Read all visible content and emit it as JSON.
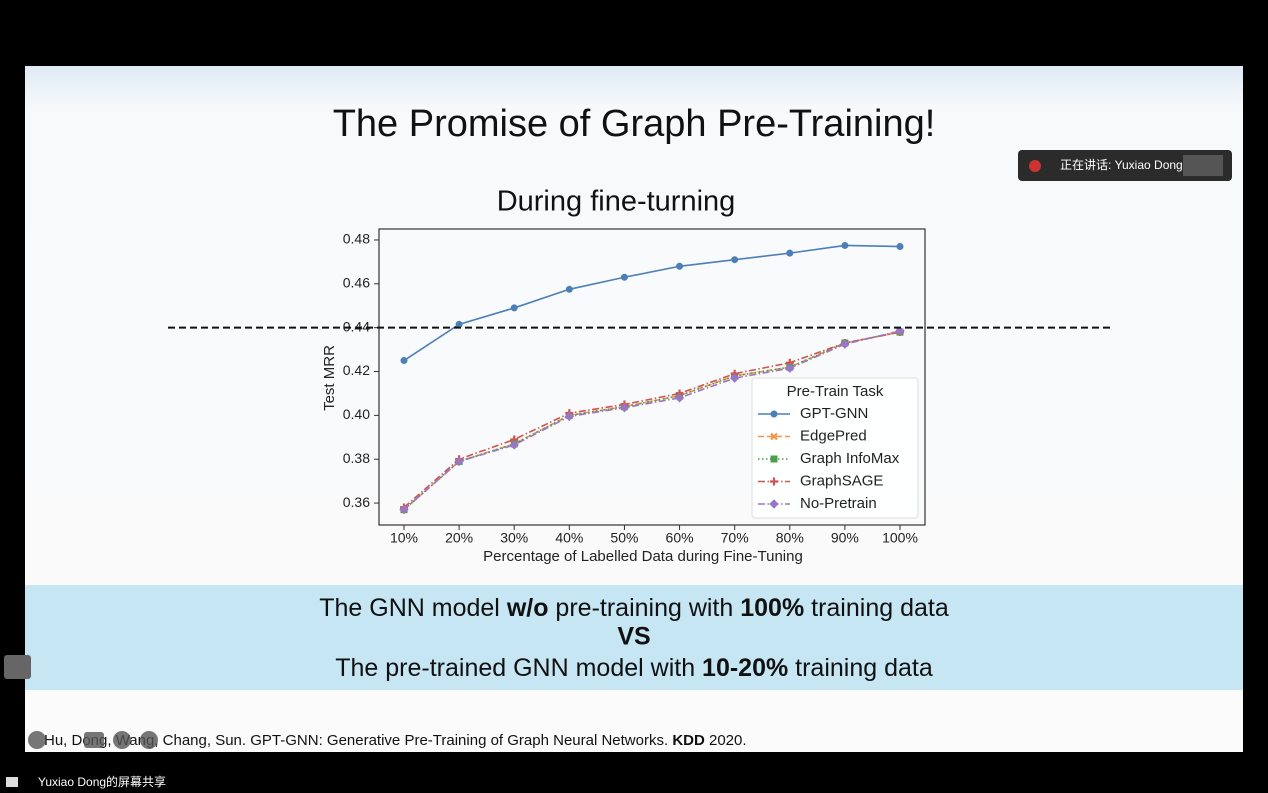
{
  "slide": {
    "title": "The Promise of Graph Pre-Training!",
    "banner": {
      "line1": [
        "The GNN model ",
        "w/o",
        " pre-training with ",
        "100%",
        " training data"
      ],
      "line2": "VS",
      "line3": [
        "The pre-trained GNN model with ",
        "10-20%",
        " training data"
      ]
    },
    "citation": [
      "Hu, Dong, Wang, Chang, Sun. GPT-GNN: Generative Pre-Training of Graph Neural Networks. ",
      "KDD",
      " 2020."
    ]
  },
  "chart_data": {
    "type": "line",
    "title": "During fine-turning",
    "x_label": "Percentage of Labelled Data during Fine-Tuning",
    "y_label": "Test MRR",
    "categories": [
      "10%",
      "20%",
      "30%",
      "40%",
      "50%",
      "60%",
      "70%",
      "80%",
      "90%",
      "100%"
    ],
    "ylim": [
      0.35,
      0.485
    ],
    "yticks": [
      0.36,
      0.38,
      {
        "value": 0.4,
        "label": "0.40"
      },
      0.42,
      0.44,
      0.46,
      0.48
    ],
    "reference_line": 0.44,
    "legend_title": "Pre-Train Task",
    "legend": "lower right",
    "series": [
      {
        "name": "GPT-GNN",
        "color": "#4c7fb8",
        "style": "solid",
        "marker": "circle",
        "values": [
          0.425,
          0.4415,
          0.449,
          0.4575,
          0.463,
          0.468,
          0.471,
          0.474,
          0.4775,
          0.477
        ]
      },
      {
        "name": "EdgePred",
        "color": "#f0954a",
        "style": "dashed",
        "marker": "x",
        "values": [
          0.357,
          0.379,
          0.387,
          0.4,
          0.404,
          0.409,
          0.418,
          0.422,
          0.433,
          0.438
        ]
      },
      {
        "name": "Graph InfoMax",
        "color": "#4aa04a",
        "style": "dotted",
        "marker": "square",
        "values": [
          0.357,
          0.379,
          0.387,
          0.4,
          0.404,
          0.409,
          0.418,
          0.422,
          0.433,
          0.438
        ]
      },
      {
        "name": "GraphSAGE",
        "color": "#d0534f",
        "style": "dashdot",
        "marker": "plus",
        "values": [
          0.358,
          0.38,
          0.389,
          0.401,
          0.405,
          0.41,
          0.419,
          0.424,
          0.433,
          0.438
        ]
      },
      {
        "name": "No-Pretrain",
        "color": "#9a77c4",
        "style": "dashdot",
        "marker": "diamond",
        "values": [
          0.357,
          0.379,
          0.3865,
          0.3995,
          0.4035,
          0.408,
          0.417,
          0.4215,
          0.4325,
          0.4385
        ]
      }
    ]
  },
  "meeting": {
    "speaker": "正在讲话: Yuxiao Dong;",
    "share_label": "Yuxiao Dong的屏幕共享"
  }
}
